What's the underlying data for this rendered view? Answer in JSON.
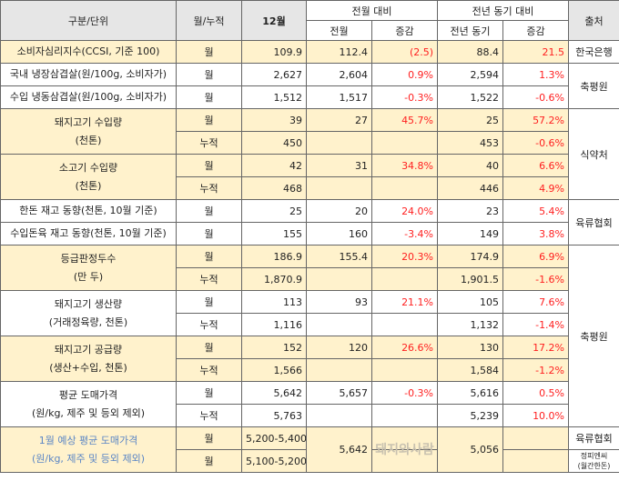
{
  "header": {
    "category": "구분/단위",
    "period": "월/누적",
    "current": "12월",
    "mom": "전월 대비",
    "mom_prev": "전월",
    "mom_change": "증감",
    "yoy": "전년 동기 대비",
    "yoy_prev": "전년 동기",
    "yoy_change": "증감",
    "source": "출처"
  },
  "groups": [
    {
      "label": [
        "소비자심리지수(CCSI, 기준 100)"
      ],
      "bg": "y",
      "rows": [
        {
          "period": "월",
          "cur": "109.9",
          "prev": "112.4",
          "mom": "(2.5)",
          "yprev": "88.4",
          "yoy": "21.5"
        }
      ]
    },
    {
      "label": [
        "국내 냉장삼겹살(원/100g, 소비자가)"
      ],
      "bg": "w",
      "rows": [
        {
          "period": "월",
          "cur": "2,627",
          "prev": "2,604",
          "mom": "0.9%",
          "yprev": "2,594",
          "yoy": "1.3%"
        }
      ]
    },
    {
      "label": [
        "수입 냉동삼겹살(원/100g, 소비자가)"
      ],
      "bg": "w",
      "rows": [
        {
          "period": "월",
          "cur": "1,512",
          "prev": "1,517",
          "mom": "-0.3%",
          "yprev": "1,522",
          "yoy": "-0.6%"
        }
      ]
    },
    {
      "label": [
        "돼지고기 수입량",
        "(천톤)"
      ],
      "bg": "y",
      "rows": [
        {
          "period": "월",
          "cur": "39",
          "prev": "27",
          "mom": "45.7%",
          "yprev": "25",
          "yoy": "57.2%"
        },
        {
          "period": "누적",
          "cur": "450",
          "prev": "",
          "mom": "",
          "yprev": "453",
          "yoy": "-0.6%"
        }
      ]
    },
    {
      "label": [
        "소고기 수입량",
        "(천톤)"
      ],
      "bg": "y",
      "rows": [
        {
          "period": "월",
          "cur": "42",
          "prev": "31",
          "mom": "34.8%",
          "yprev": "40",
          "yoy": "6.6%"
        },
        {
          "period": "누적",
          "cur": "468",
          "prev": "",
          "mom": "",
          "yprev": "446",
          "yoy": "4.9%"
        }
      ]
    },
    {
      "label": [
        "한돈 재고 동향(천톤, 10월 기준)"
      ],
      "bg": "w",
      "rows": [
        {
          "period": "월",
          "cur": "25",
          "prev": "20",
          "mom": "24.0%",
          "yprev": "23",
          "yoy": "5.4%"
        }
      ]
    },
    {
      "label": [
        "수입돈육 재고 동향(천톤, 10월 기준)"
      ],
      "bg": "w",
      "rows": [
        {
          "period": "월",
          "cur": "155",
          "prev": "160",
          "mom": "-3.4%",
          "yprev": "149",
          "yoy": "3.8%"
        }
      ]
    },
    {
      "label": [
        "등급판정두수",
        "(만 두)"
      ],
      "bg": "y",
      "rows": [
        {
          "period": "월",
          "cur": "186.9",
          "prev": "155.4",
          "mom": "20.3%",
          "yprev": "174.9",
          "yoy": "6.9%"
        },
        {
          "period": "누적",
          "cur": "1,870.9",
          "prev": "",
          "mom": "",
          "yprev": "1,901.5",
          "yoy": "-1.6%"
        }
      ]
    },
    {
      "label": [
        "돼지고기 생산량",
        "(거래정육량, 천톤)"
      ],
      "bg": "w",
      "rows": [
        {
          "period": "월",
          "cur": "113",
          "prev": "93",
          "mom": "21.1%",
          "yprev": "105",
          "yoy": "7.6%"
        },
        {
          "period": "누적",
          "cur": "1,116",
          "prev": "",
          "mom": "",
          "yprev": "1,132",
          "yoy": "-1.4%"
        }
      ]
    },
    {
      "label": [
        "돼지고기 공급량",
        "(생산+수입, 천톤)"
      ],
      "bg": "y",
      "rows": [
        {
          "period": "월",
          "cur": "152",
          "prev": "120",
          "mom": "26.6%",
          "yprev": "130",
          "yoy": "17.2%"
        },
        {
          "period": "누적",
          "cur": "1,566",
          "prev": "",
          "mom": "",
          "yprev": "1,584",
          "yoy": "-1.2%"
        }
      ]
    },
    {
      "label": [
        "평균 도매가격",
        "(원/kg, 제주 및 등외 제외)"
      ],
      "bg": "w",
      "rows": [
        {
          "period": "월",
          "cur": "5,642",
          "prev": "5,657",
          "mom": "-0.3%",
          "yprev": "5,616",
          "yoy": "0.5%"
        },
        {
          "period": "누적",
          "cur": "5,763",
          "prev": "",
          "mom": "",
          "yprev": "5,239",
          "yoy": "10.0%"
        }
      ]
    },
    {
      "label": [
        "1월 예상 평균 도매가격",
        "(원/kg, 제주 및 등외 제외)"
      ],
      "bg": "y",
      "blue": true,
      "merged": true,
      "prev": "5,642",
      "yprev": "5,056",
      "rows": [
        {
          "period": "월",
          "cur": "5,200-5,400",
          "mom": "",
          "yoy": ""
        },
        {
          "period": "월",
          "cur": "5,100-5,200",
          "mom": "",
          "yoy": ""
        }
      ]
    }
  ],
  "sources": [
    {
      "name": "한국은행",
      "span": 1
    },
    {
      "name": "축평원",
      "span": 2
    },
    {
      "name": "식약처",
      "span": 4
    },
    {
      "name": "육류협회",
      "span": 2
    },
    {
      "name": "축평원",
      "span": 8
    },
    {
      "name": "육류협회",
      "span": 1
    },
    {
      "name": "정피엔씨\n(월간한돈)",
      "span": 1,
      "small": true
    }
  ],
  "watermark": "돼지와사람"
}
